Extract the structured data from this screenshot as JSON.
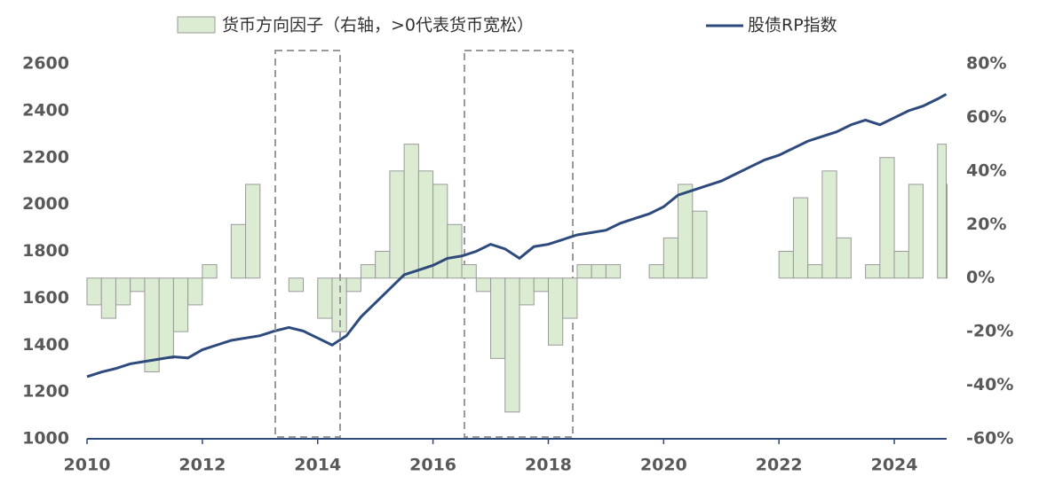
{
  "chart_data": {
    "type": "step-area-line",
    "x": [
      2010.0,
      2010.25,
      2010.5,
      2010.75,
      2011.0,
      2011.25,
      2011.5,
      2011.75,
      2012.0,
      2012.25,
      2012.5,
      2012.75,
      2013.0,
      2013.25,
      2013.5,
      2013.75,
      2014.0,
      2014.25,
      2014.5,
      2014.75,
      2015.0,
      2015.25,
      2015.5,
      2015.75,
      2016.0,
      2016.25,
      2016.5,
      2016.75,
      2017.0,
      2017.25,
      2017.5,
      2017.75,
      2018.0,
      2018.25,
      2018.5,
      2018.75,
      2019.0,
      2019.25,
      2019.5,
      2019.75,
      2020.0,
      2020.25,
      2020.5,
      2020.75,
      2021.0,
      2021.25,
      2021.5,
      2021.75,
      2022.0,
      2022.25,
      2022.5,
      2022.75,
      2023.0,
      2023.25,
      2023.5,
      2023.75,
      2024.0,
      2024.25,
      2024.5,
      2024.75,
      2024.9
    ],
    "series": [
      {
        "name": "货币方向因子（右轴，>0代表货币宽松）",
        "color": "#dbecd3",
        "axis": "y2",
        "kind": "step-area",
        "values": [
          -10,
          -15,
          -10,
          -5,
          -35,
          -30,
          -20,
          -10,
          5,
          0,
          20,
          35,
          0,
          0,
          -5,
          0,
          -15,
          -20,
          -5,
          5,
          10,
          40,
          50,
          40,
          35,
          20,
          5,
          -5,
          -30,
          -50,
          -10,
          -5,
          -25,
          -15,
          5,
          5,
          5,
          0,
          0,
          5,
          15,
          35,
          25,
          0,
          0,
          0,
          0,
          0,
          10,
          30,
          5,
          40,
          15,
          0,
          5,
          45,
          10,
          35,
          0,
          50,
          35
        ]
      },
      {
        "name": "股债RP指数",
        "color": "#2e4a7d",
        "kind": "line",
        "values": [
          1265,
          1285,
          1300,
          1320,
          1330,
          1340,
          1350,
          1345,
          1380,
          1400,
          1420,
          1430,
          1440,
          1460,
          1475,
          1460,
          1430,
          1400,
          1440,
          1520,
          1580,
          1640,
          1700,
          1720,
          1740,
          1770,
          1780,
          1800,
          1830,
          1810,
          1770,
          1820,
          1830,
          1850,
          1870,
          1880,
          1890,
          1920,
          1940,
          1960,
          1990,
          2040,
          2060,
          2080,
          2100,
          2130,
          2160,
          2190,
          2210,
          2240,
          2270,
          2290,
          2310,
          2340,
          2360,
          2340,
          2370,
          2400,
          2420,
          2450,
          2470
        ]
      }
    ],
    "xlim": [
      2010,
      2025
    ],
    "xticks": [
      2010,
      2012,
      2014,
      2016,
      2018,
      2020,
      2022,
      2024
    ],
    "ylim": [
      1000,
      2600
    ],
    "yticks": [
      1000,
      1200,
      1400,
      1600,
      1800,
      2000,
      2200,
      2400,
      2600
    ],
    "y2lim": [
      -60,
      80
    ],
    "y2ticks": [
      {
        "value": -60,
        "label": "-60%"
      },
      {
        "value": -40,
        "label": "-40%"
      },
      {
        "value": -20,
        "label": "-20%"
      },
      {
        "value": 0,
        "label": "0%"
      },
      {
        "value": 20,
        "label": "20%"
      },
      {
        "value": 40,
        "label": "40%"
      },
      {
        "value": 60,
        "label": "60%"
      },
      {
        "value": 80,
        "label": "80%"
      }
    ]
  }
}
